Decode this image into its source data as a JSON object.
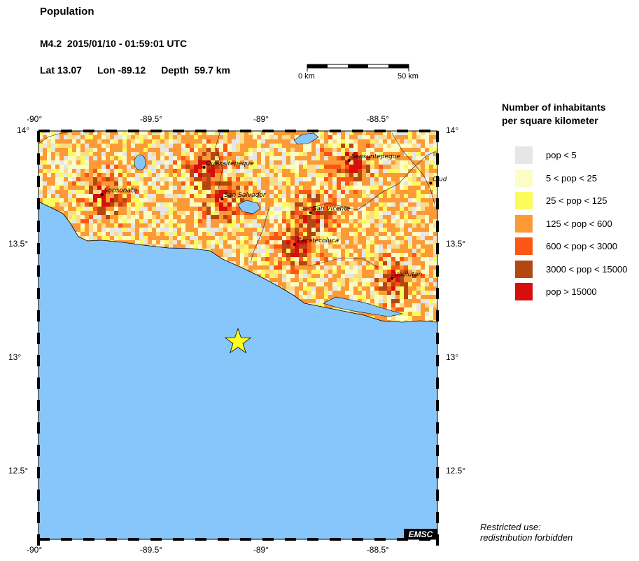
{
  "header": {
    "title": "Population",
    "event": "M4.2  2015/01/10 - 01:59:01 UTC",
    "lat": "Lat 13.07",
    "lon": "Lon -89.12",
    "depth": "Depth  59.7 km"
  },
  "scale_bar": {
    "start_label": "0 km",
    "end_label": "50 km"
  },
  "axes": {
    "lon_labels": [
      "-90°",
      "-89.5°",
      "-89°",
      "-88.5°"
    ],
    "lat_labels": [
      "14°",
      "13.5°",
      "13°",
      "12.5°"
    ],
    "lon_range": [
      -90,
      -88.24
    ],
    "lat_range": [
      12.2,
      14
    ]
  },
  "epicenter": {
    "lat": 13.07,
    "lon": -89.12,
    "color": "#ffff22"
  },
  "cities": [
    {
      "name": "Sonsonate",
      "lat": 13.72,
      "lon": -89.72
    },
    {
      "name": "Quezaltepeque",
      "lat": 13.84,
      "lon": -89.27
    },
    {
      "name": "San Salvador",
      "lat": 13.7,
      "lon": -89.19
    },
    {
      "name": "Sensuntepeque",
      "lat": 13.87,
      "lon": -88.63
    },
    {
      "name": "San Vicente",
      "lat": 13.64,
      "lon": -88.8
    },
    {
      "name": "Zacatecoluca",
      "lat": 13.5,
      "lon": -88.87
    },
    {
      "name": "Usulutan",
      "lat": 13.35,
      "lon": -88.44
    },
    {
      "name": "Ciud",
      "lat": 13.77,
      "lon": -88.27
    }
  ],
  "legend": {
    "title_line1": "Number of inhabitants",
    "title_line2": "per square kilometer",
    "items": [
      {
        "label": "pop < 5",
        "color": "#e6e6e6"
      },
      {
        "label": "5 < pop < 25",
        "color": "#fcfcc6"
      },
      {
        "label": "25 < pop < 125",
        "color": "#fbfb5e"
      },
      {
        "label": "125 < pop < 600",
        "color": "#fc9a38"
      },
      {
        "label": "600 < pop < 3000",
        "color": "#fc5614"
      },
      {
        "label": "3000 < pop < 15000",
        "color": "#b34712"
      },
      {
        "label": "pop > 15000",
        "color": "#d80d0d"
      }
    ]
  },
  "colors": {
    "sea": "#87c6fa",
    "land_base": "#fbdc86"
  },
  "logo": "EMSC",
  "restriction": {
    "line1": "Restricted use:",
    "line2": "redistribution forbidden"
  }
}
